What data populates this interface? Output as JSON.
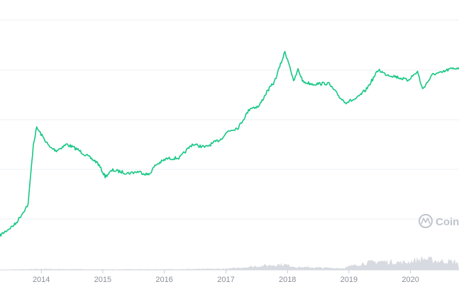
{
  "chart_data": {
    "type": "line",
    "title": "",
    "xlabel": "",
    "ylabel": "",
    "x_tick_labels": [
      "2014",
      "2015",
      "2016",
      "2017",
      "2018",
      "2019",
      "2020"
    ],
    "xlim": [
      "2013-05-01",
      "2020-10-15"
    ],
    "y_scale": "log",
    "y_tick_labels": [],
    "grid": "horizontal",
    "legend": "none",
    "series": [
      {
        "color": "#16c784",
        "points": [
          [
            "2013-05-01",
            0.02
          ],
          [
            "2013-08-01",
            0.03
          ],
          [
            "2013-10-15",
            0.06
          ],
          [
            "2013-11-15",
            0.5
          ],
          [
            "2013-12-05",
            0.9
          ],
          [
            "2014-01-10",
            0.65
          ],
          [
            "2014-02-20",
            0.45
          ],
          [
            "2014-04-01",
            0.4
          ],
          [
            "2014-06-01",
            0.5
          ],
          [
            "2014-08-01",
            0.42
          ],
          [
            "2014-10-01",
            0.33
          ],
          [
            "2014-12-01",
            0.26
          ],
          [
            "2015-01-15",
            0.16
          ],
          [
            "2015-03-01",
            0.2
          ],
          [
            "2015-06-01",
            0.18
          ],
          [
            "2015-08-01",
            0.19
          ],
          [
            "2015-10-01",
            0.17
          ],
          [
            "2015-11-10",
            0.24
          ],
          [
            "2016-01-15",
            0.3
          ],
          [
            "2016-04-01",
            0.31
          ],
          [
            "2016-06-15",
            0.5
          ],
          [
            "2016-09-01",
            0.45
          ],
          [
            "2016-12-01",
            0.6
          ],
          [
            "2017-01-15",
            0.8
          ],
          [
            "2017-03-15",
            0.9
          ],
          [
            "2017-05-25",
            1.8
          ],
          [
            "2017-07-15",
            1.9
          ],
          [
            "2017-09-01",
            3.2
          ],
          [
            "2017-10-15",
            4.5
          ],
          [
            "2017-12-17",
            13
          ],
          [
            "2018-01-15",
            8
          ],
          [
            "2018-02-06",
            4.5
          ],
          [
            "2018-03-05",
            7
          ],
          [
            "2018-04-05",
            4.5
          ],
          [
            "2018-06-01",
            4.2
          ],
          [
            "2018-09-01",
            4.3
          ],
          [
            "2018-11-15",
            2.5
          ],
          [
            "2018-12-15",
            2.2
          ],
          [
            "2019-02-15",
            2.5
          ],
          [
            "2019-04-15",
            3.5
          ],
          [
            "2019-06-26",
            7
          ],
          [
            "2019-08-01",
            6
          ],
          [
            "2019-10-01",
            5.5
          ],
          [
            "2019-12-15",
            4.8
          ],
          [
            "2020-02-12",
            6.5
          ],
          [
            "2020-03-12",
            3.5
          ],
          [
            "2020-05-15",
            6
          ],
          [
            "2020-07-01",
            6.2
          ],
          [
            "2020-08-15",
            7
          ],
          [
            "2020-10-15",
            7.5
          ]
        ]
      }
    ],
    "volume_series": {
      "color": "#c9ced6",
      "points": [
        [
          "2013-05-01",
          0.02
        ],
        [
          "2014-01-01",
          0.08
        ],
        [
          "2015-01-01",
          0.05
        ],
        [
          "2016-01-01",
          0.06
        ],
        [
          "2017-01-01",
          0.1
        ],
        [
          "2017-12-01",
          0.5
        ],
        [
          "2018-03-01",
          0.25
        ],
        [
          "2018-12-01",
          0.15
        ],
        [
          "2019-01-15",
          0.35
        ],
        [
          "2019-04-01",
          0.6
        ],
        [
          "2019-07-01",
          0.75
        ],
        [
          "2019-12-01",
          0.65
        ],
        [
          "2020-03-12",
          1.0
        ],
        [
          "2020-06-01",
          0.8
        ],
        [
          "2020-10-15",
          0.7
        ]
      ]
    },
    "watermark": {
      "text": "Coinl",
      "icon": "coinmarketcap-logo-icon"
    }
  }
}
